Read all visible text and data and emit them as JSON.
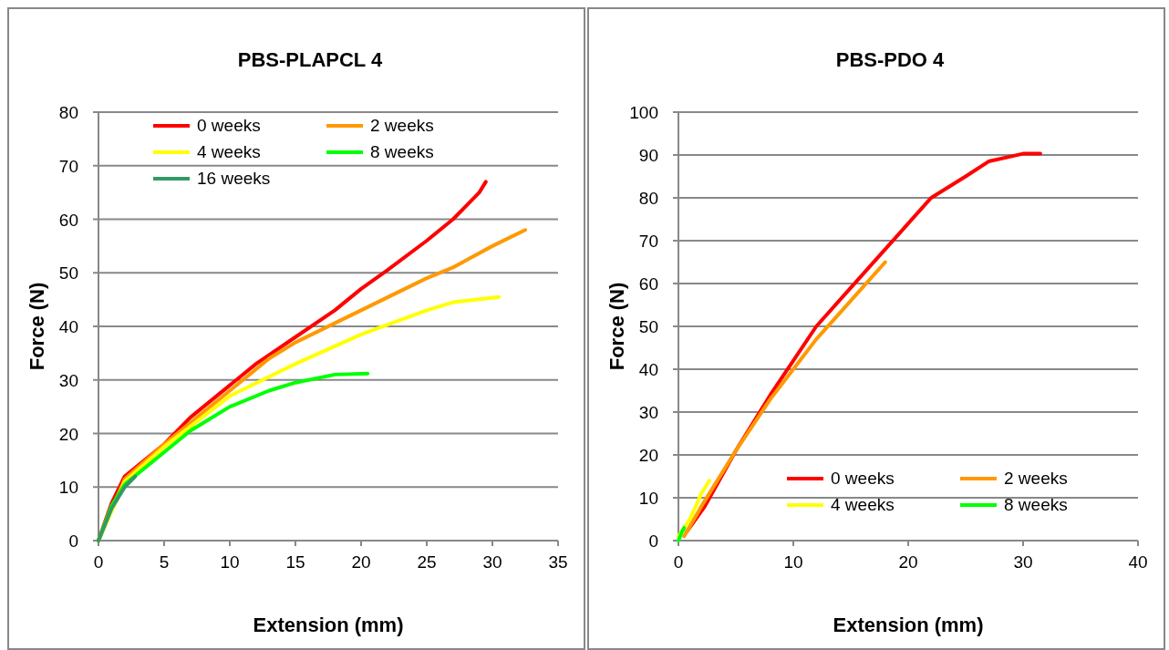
{
  "chart_data": [
    {
      "type": "line",
      "title": "PBS-PLAPCL 4",
      "xlabel": "Extension (mm)",
      "ylabel": "Force (N)",
      "xlim": [
        0,
        35
      ],
      "xticks": [
        0,
        5,
        10,
        15,
        20,
        25,
        30,
        35
      ],
      "ylim": [
        0,
        80
      ],
      "yticks": [
        0,
        10,
        20,
        30,
        40,
        50,
        60,
        70,
        80
      ],
      "grid": "y",
      "legend": "top",
      "marker": "none",
      "line_style": "solid",
      "series": [
        {
          "name": "0 weeks",
          "color": "#ff0000",
          "x": [
            0,
            1,
            2,
            3,
            5,
            7,
            10,
            12,
            15,
            18,
            20,
            22,
            25,
            27,
            29,
            29.5
          ],
          "values": [
            0,
            7,
            12,
            14,
            18,
            23,
            29,
            33,
            38,
            43,
            47,
            50.5,
            56,
            60,
            65,
            67
          ]
        },
        {
          "name": "2 weeks",
          "color": "#ff9900",
          "x": [
            0,
            2,
            5,
            7,
            10,
            13,
            15,
            20,
            25,
            27,
            30,
            32.5
          ],
          "values": [
            0,
            11.5,
            18,
            22,
            28,
            34,
            37,
            43,
            49,
            51,
            55,
            58
          ]
        },
        {
          "name": "4 weeks",
          "color": "#ffff00",
          "x": [
            0,
            2,
            5,
            10,
            15,
            20,
            25,
            27,
            30.5
          ],
          "values": [
            0,
            11,
            17.5,
            27,
            33,
            38.5,
            43,
            44.5,
            45.5
          ]
        },
        {
          "name": "8 weeks",
          "color": "#00ff00",
          "x": [
            0,
            1,
            2,
            5,
            7,
            10,
            13,
            15,
            18,
            20.5
          ],
          "values": [
            0,
            6.5,
            10.5,
            16.5,
            20.5,
            25,
            28,
            29.5,
            31,
            31.2
          ]
        },
        {
          "name": "16 weeks",
          "color": "#339966",
          "x": [
            0,
            1,
            2,
            2.8
          ],
          "values": [
            0,
            6,
            10,
            12
          ]
        }
      ]
    },
    {
      "type": "line",
      "title": "PBS-PDO 4",
      "xlabel": "Extension (mm)",
      "ylabel": "Force (N)",
      "xlim": [
        0,
        40
      ],
      "xticks": [
        0,
        10,
        20,
        30,
        40
      ],
      "ylim": [
        0,
        100
      ],
      "yticks": [
        0,
        10,
        20,
        30,
        40,
        50,
        60,
        70,
        80,
        90,
        100
      ],
      "grid": "y",
      "legend": "bottom right",
      "marker": "none",
      "line_style": "solid",
      "series": [
        {
          "name": "0 weeks",
          "color": "#ff0000",
          "x": [
            0.7,
            2.3,
            5,
            8,
            10,
            12,
            15,
            18,
            20,
            22,
            25,
            27,
            30,
            31.5
          ],
          "values": [
            2,
            8,
            21,
            34,
            42,
            50,
            59,
            68,
            74,
            80,
            85,
            88.5,
            90.3,
            90.3
          ]
        },
        {
          "name": "2 weeks",
          "color": "#ff9900",
          "x": [
            0.5,
            2,
            5,
            8,
            10,
            12,
            15,
            18
          ],
          "values": [
            1,
            8,
            21,
            33,
            40,
            47,
            56,
            65
          ]
        },
        {
          "name": "4 weeks",
          "color": "#ffff00",
          "x": [
            0,
            1,
            2,
            2.7
          ],
          "values": [
            1,
            5,
            11,
            14
          ]
        },
        {
          "name": "8 weeks",
          "color": "#00ff00",
          "x": [
            0,
            0.3,
            0.5
          ],
          "values": [
            0,
            2,
            3
          ]
        }
      ]
    }
  ]
}
